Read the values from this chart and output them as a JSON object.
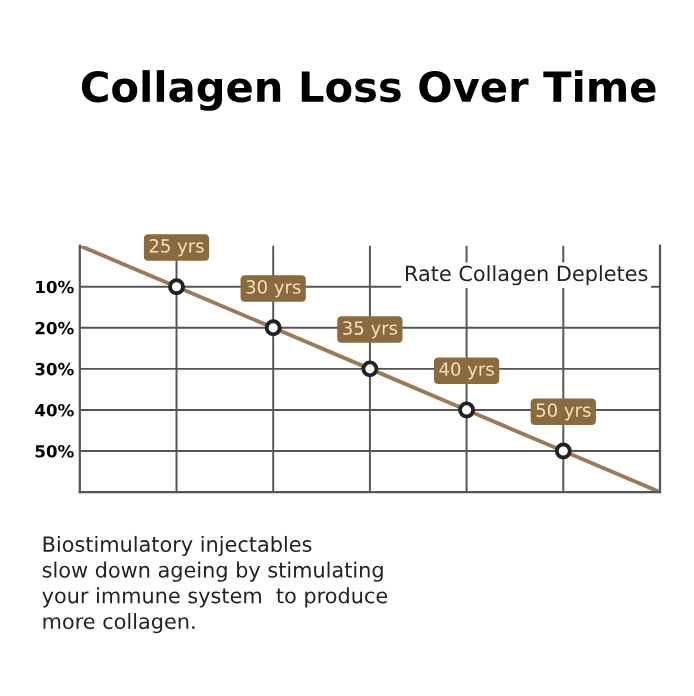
{
  "chart_data": {
    "type": "line",
    "title": "Collagen Loss Over Time",
    "categories": [
      null,
      null,
      null,
      null,
      null,
      null,
      null
    ],
    "ylim": [
      60,
      0
    ],
    "yticks": [
      {
        "value": 10,
        "label": "10%"
      },
      {
        "value": 20,
        "label": "20%"
      },
      {
        "value": 30,
        "label": "30%"
      },
      {
        "value": 40,
        "label": "40%"
      },
      {
        "value": 50,
        "label": "50%"
      }
    ],
    "tick_labels": "y",
    "grid": true,
    "line_style": "solid",
    "series": [
      {
        "color": "#9c7a55",
        "values": [
          0,
          10,
          20,
          30,
          40,
          50,
          60
        ]
      },
      {
        "type": "scatter",
        "color": "#222222",
        "values": [
          null,
          10,
          20,
          30,
          40,
          50,
          null
        ],
        "marker": "circle"
      }
    ],
    "annotations": [
      {
        "text": "25 yrs",
        "y": 10
      },
      {
        "text": "30 yrs",
        "y": 20
      },
      {
        "text": "35 yrs",
        "y": 30
      },
      {
        "text": "40 yrs",
        "y": 40
      },
      {
        "text": "50 yrs",
        "y": 50
      },
      "Rate Collagen Depletes",
      "Biostimulatory injectables\nslow down ageing by stimulating\nyour immune system  to produce\nmore collagen."
    ]
  }
}
